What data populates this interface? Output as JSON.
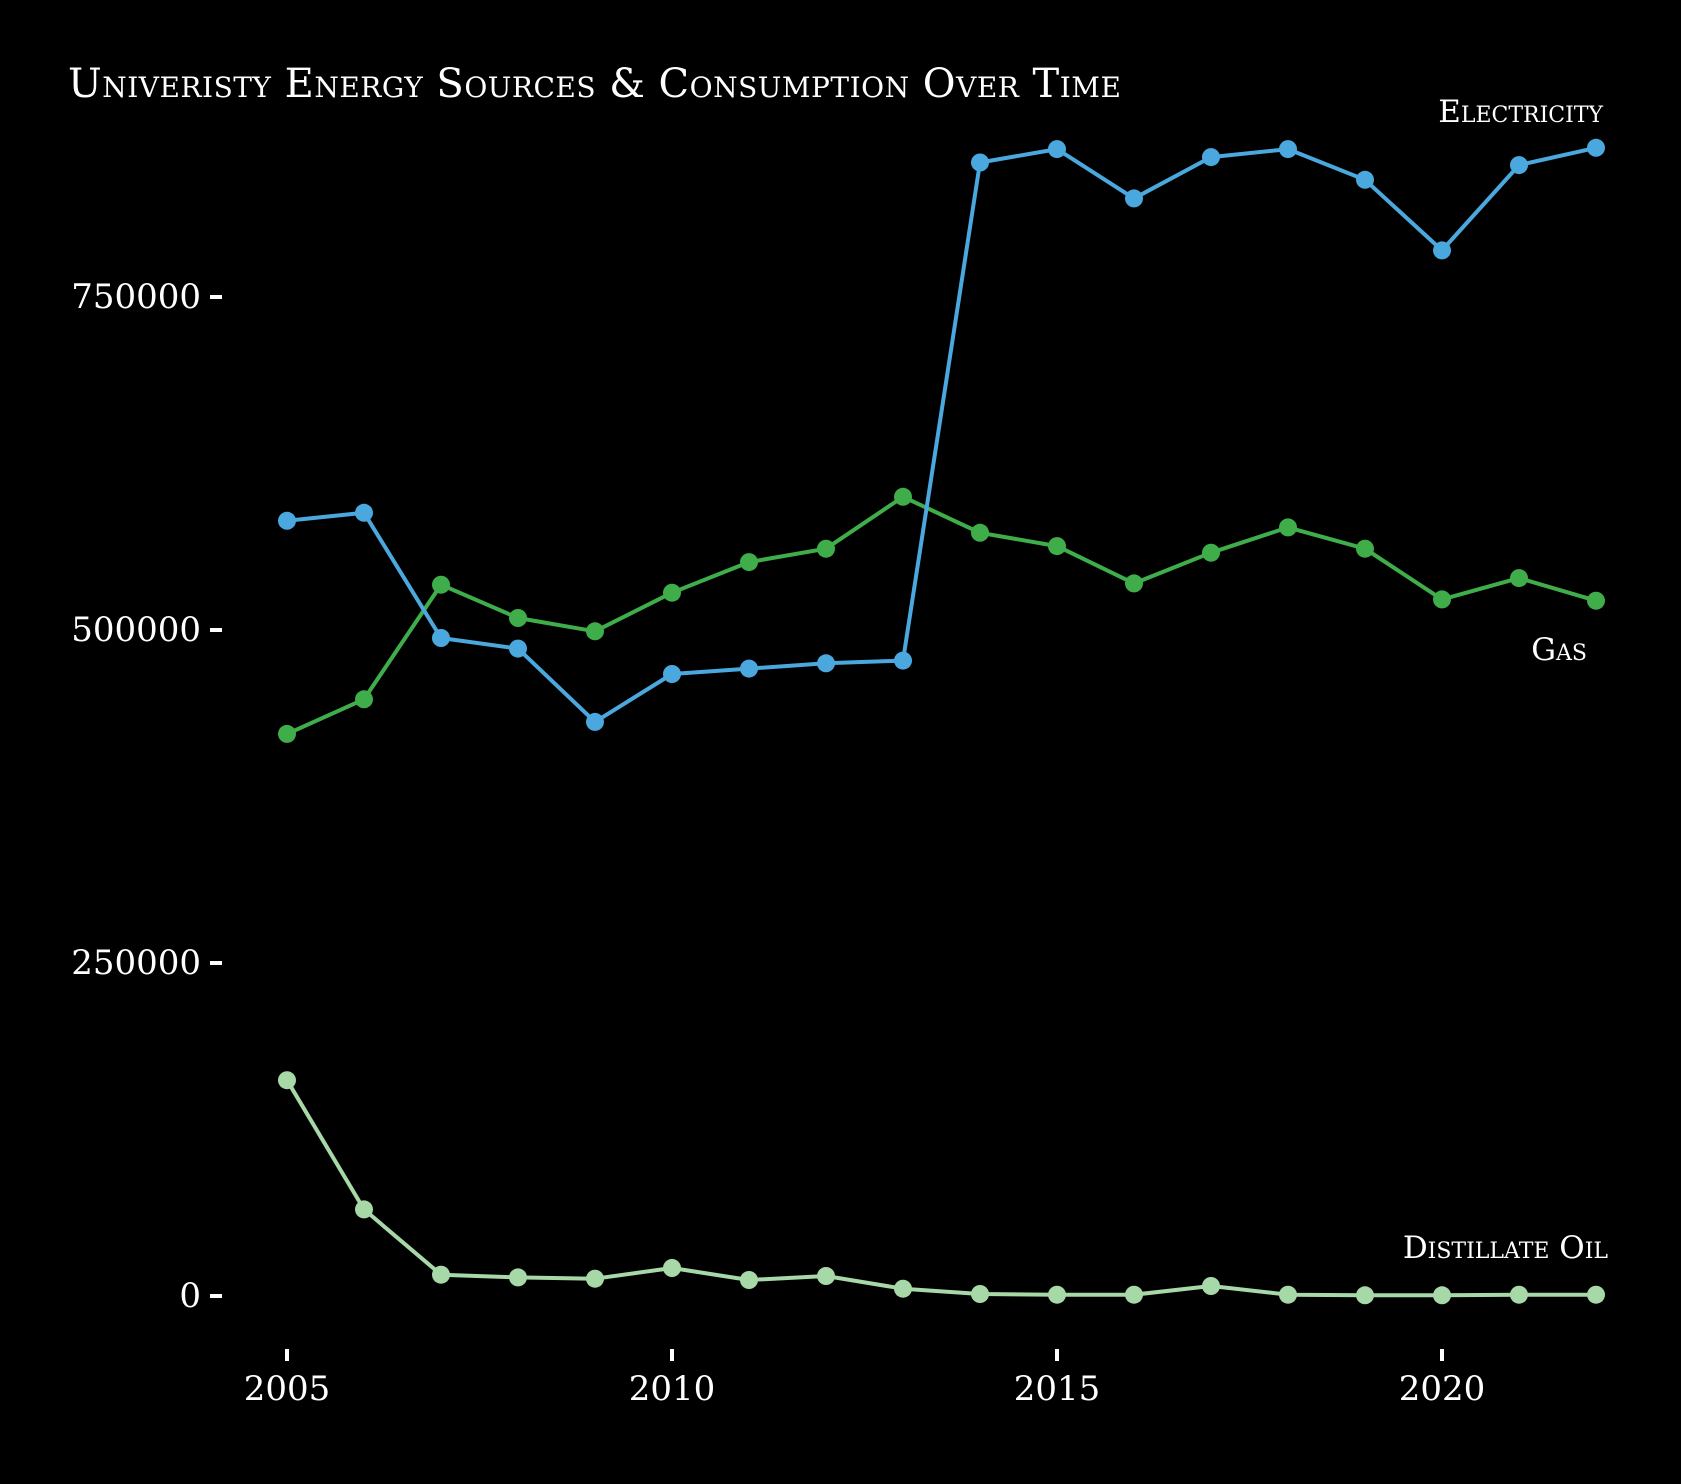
{
  "colors": {
    "background": "#000000",
    "text": "#ffffff",
    "electricity": "#4aa8de",
    "gas": "#3fae4a",
    "distillate_oil": "#a7d8a7"
  },
  "chart_data": {
    "type": "line",
    "title": "Univeristy Energy Sources & Consumption Over Time",
    "xlabel": "",
    "ylabel": "",
    "x": [
      2005,
      2006,
      2007,
      2008,
      2009,
      2010,
      2011,
      2012,
      2013,
      2014,
      2015,
      2016,
      2017,
      2018,
      2019,
      2020,
      2021,
      2022
    ],
    "xticks": [
      2005,
      2010,
      2015,
      2020
    ],
    "yticks": [
      0,
      250000,
      500000,
      750000
    ],
    "xlim": [
      2005,
      2022
    ],
    "ylim": [
      0,
      860000
    ],
    "grid": false,
    "legend": "direct labels at right",
    "series": [
      {
        "name": "Electricity",
        "color": "#4aa8de",
        "values": [
          582000,
          588000,
          494000,
          486000,
          431000,
          467000,
          471000,
          475000,
          477000,
          851000,
          861000,
          824000,
          855000,
          861000,
          838000,
          785000,
          849000,
          862000
        ]
      },
      {
        "name": "Gas",
        "color": "#3fae4a",
        "values": [
          422000,
          448000,
          534000,
          509000,
          499000,
          528000,
          551000,
          561000,
          600000,
          573000,
          563000,
          535000,
          558000,
          577000,
          561000,
          523000,
          539000,
          522000
        ]
      },
      {
        "name": "Distillate Oil",
        "color": "#a7d8a7",
        "values": [
          162000,
          65000,
          16000,
          14000,
          13000,
          21000,
          12000,
          15000,
          5500,
          1500,
          1000,
          1000,
          7500,
          1000,
          500,
          500,
          1000,
          1000
        ]
      }
    ]
  }
}
